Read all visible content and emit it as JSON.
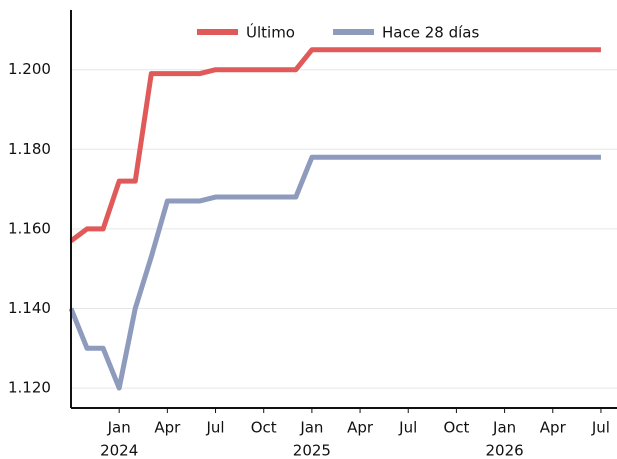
{
  "chart_data": {
    "type": "line",
    "x": [
      "2023-10",
      "2023-11",
      "2023-12",
      "2024-01",
      "2024-02",
      "2024-03",
      "2024-04",
      "2024-05",
      "2024-06",
      "2024-07",
      "2024-08",
      "2024-09",
      "2024-10",
      "2024-11",
      "2024-12",
      "2025-01",
      "2025-02",
      "2025-03",
      "2025-04",
      "2025-05",
      "2025-06",
      "2025-07",
      "2025-08",
      "2025-09",
      "2025-10",
      "2025-11",
      "2025-12",
      "2026-01",
      "2026-02",
      "2026-03",
      "2026-04",
      "2026-05",
      "2026-06",
      "2026-07"
    ],
    "series": [
      {
        "name": "Último",
        "color": "#e05a5a",
        "values": [
          1.157,
          1.16,
          1.16,
          1.172,
          1.172,
          1.199,
          1.199,
          1.199,
          1.199,
          1.2,
          1.2,
          1.2,
          1.2,
          1.2,
          1.2,
          1.205,
          1.205,
          1.205,
          1.205,
          1.205,
          1.205,
          1.205,
          1.205,
          1.205,
          1.205,
          1.205,
          1.205,
          1.205,
          1.205,
          1.205,
          1.205,
          1.205,
          1.205,
          1.205
        ]
      },
      {
        "name": "Hace 28 días",
        "color": "#8e9bbd",
        "values": [
          1.14,
          1.13,
          1.13,
          1.12,
          1.14,
          1.153,
          1.167,
          1.167,
          1.167,
          1.168,
          1.168,
          1.168,
          1.168,
          1.168,
          1.168,
          1.178,
          1.178,
          1.178,
          1.178,
          1.178,
          1.178,
          1.178,
          1.178,
          1.178,
          1.178,
          1.178,
          1.178,
          1.178,
          1.178,
          1.178,
          1.178,
          1.178,
          1.178,
          1.178
        ]
      }
    ],
    "xlim": [
      "2023-10",
      "2026-08"
    ],
    "xticks": [
      {
        "value": "2024-01",
        "label": "Jan",
        "year": "2024"
      },
      {
        "value": "2024-04",
        "label": "Apr"
      },
      {
        "value": "2024-07",
        "label": "Jul"
      },
      {
        "value": "2024-10",
        "label": "Oct"
      },
      {
        "value": "2025-01",
        "label": "Jan",
        "year": "2025"
      },
      {
        "value": "2025-04",
        "label": "Apr"
      },
      {
        "value": "2025-07",
        "label": "Jul"
      },
      {
        "value": "2025-10",
        "label": "Oct"
      },
      {
        "value": "2026-01",
        "label": "Jan",
        "year": "2026"
      },
      {
        "value": "2026-04",
        "label": "Apr"
      },
      {
        "value": "2026-07",
        "label": "Jul"
      }
    ],
    "ylim": [
      1.115,
      1.215
    ],
    "yticks": [
      {
        "value": 1.12,
        "label": "1.120"
      },
      {
        "value": 1.14,
        "label": "1.140"
      },
      {
        "value": 1.16,
        "label": "1.160"
      },
      {
        "value": 1.18,
        "label": "1.180"
      },
      {
        "value": 1.2,
        "label": "1.200"
      }
    ],
    "grid": true,
    "legend": "top"
  }
}
